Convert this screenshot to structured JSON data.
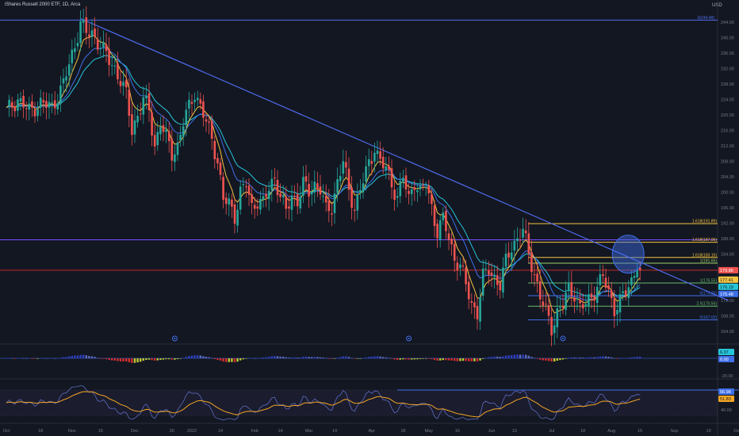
{
  "header": {
    "title": "iShares Russell 2000 ETF, 1D, Arca",
    "currency": "USD"
  },
  "colors": {
    "bg": "#131722",
    "up": "#26a69a",
    "down": "#ef5350",
    "ema_fast": "#f5c542",
    "ema_mid": "#3f6fe8",
    "ema_slow": "#26c6da",
    "trendline": "#4f6bed",
    "purple": "#7b4dff"
  },
  "chart_data": {
    "type": "candlestick",
    "title": "iShares Russell 2000 ETF, 1D, Arca",
    "ylabel": "USD",
    "ylim": [
      162,
      246
    ],
    "price_ticks": [
      164,
      168,
      172,
      176,
      180,
      184,
      188,
      192,
      196,
      200,
      204,
      208,
      212,
      216,
      220,
      224,
      228,
      232,
      236,
      240,
      244
    ],
    "time_ticks": [
      {
        "label": "Oct",
        "t": 0
      },
      {
        "label": "18",
        "t": 12
      },
      {
        "label": "Nov",
        "t": 23
      },
      {
        "label": "15",
        "t": 33
      },
      {
        "label": "Dec",
        "t": 45
      },
      {
        "label": "20",
        "t": 58
      },
      {
        "label": "2022",
        "t": 65
      },
      {
        "label": "14",
        "t": 75
      },
      {
        "label": "Feb",
        "t": 87
      },
      {
        "label": "14",
        "t": 96
      },
      {
        "label": "Mar",
        "t": 106
      },
      {
        "label": "14",
        "t": 115
      },
      {
        "label": "Apr",
        "t": 128
      },
      {
        "label": "18",
        "t": 139
      },
      {
        "label": "May",
        "t": 148
      },
      {
        "label": "16",
        "t": 158
      },
      {
        "label": "Jun",
        "t": 170
      },
      {
        "label": "13",
        "t": 178
      },
      {
        "label": "Jul",
        "t": 191
      },
      {
        "label": "18",
        "t": 202
      },
      {
        "label": "Aug",
        "t": 212
      },
      {
        "label": "15",
        "t": 222
      },
      {
        "label": "Sep",
        "t": 234
      },
      {
        "label": "19",
        "t": 246
      },
      {
        "label": "Oct",
        "t": 256
      }
    ],
    "anchors": [
      [
        0,
        221
      ],
      [
        4,
        224
      ],
      [
        8,
        221
      ],
      [
        12,
        223
      ],
      [
        16,
        222
      ],
      [
        20,
        228
      ],
      [
        24,
        238
      ],
      [
        26,
        244
      ],
      [
        28,
        241
      ],
      [
        30,
        241
      ],
      [
        33,
        238
      ],
      [
        36,
        234
      ],
      [
        38,
        232
      ],
      [
        40,
        229
      ],
      [
        42,
        225
      ],
      [
        44,
        216
      ],
      [
        46,
        220
      ],
      [
        48,
        224
      ],
      [
        50,
        221
      ],
      [
        52,
        212
      ],
      [
        54,
        218
      ],
      [
        58,
        210
      ],
      [
        60,
        212
      ],
      [
        62,
        218
      ],
      [
        64,
        222
      ],
      [
        66,
        226
      ],
      [
        68,
        222
      ],
      [
        70,
        218
      ],
      [
        72,
        214
      ],
      [
        74,
        208
      ],
      [
        76,
        198
      ],
      [
        78,
        197
      ],
      [
        80,
        194
      ],
      [
        82,
        200
      ],
      [
        84,
        202
      ],
      [
        86,
        196
      ],
      [
        88,
        198
      ],
      [
        90,
        197
      ],
      [
        92,
        201
      ],
      [
        94,
        204
      ],
      [
        96,
        199
      ],
      [
        98,
        195
      ],
      [
        100,
        199
      ],
      [
        102,
        198
      ],
      [
        104,
        202
      ],
      [
        106,
        200
      ],
      [
        108,
        202
      ],
      [
        110,
        201
      ],
      [
        112,
        195
      ],
      [
        114,
        196
      ],
      [
        116,
        203
      ],
      [
        118,
        208
      ],
      [
        120,
        200
      ],
      [
        122,
        196
      ],
      [
        124,
        201
      ],
      [
        126,
        205
      ],
      [
        128,
        209
      ],
      [
        129,
        212
      ],
      [
        131,
        208
      ],
      [
        133,
        206
      ],
      [
        135,
        202
      ],
      [
        137,
        199
      ],
      [
        139,
        204
      ],
      [
        141,
        198
      ],
      [
        143,
        203
      ],
      [
        145,
        200
      ],
      [
        147,
        202
      ],
      [
        149,
        196
      ],
      [
        151,
        190
      ],
      [
        153,
        193
      ],
      [
        155,
        188
      ],
      [
        157,
        183
      ],
      [
        159,
        181
      ],
      [
        161,
        176
      ],
      [
        163,
        171
      ],
      [
        165,
        169
      ],
      [
        167,
        178
      ],
      [
        169,
        180
      ],
      [
        171,
        178
      ],
      [
        173,
        176
      ],
      [
        175,
        182
      ],
      [
        177,
        186
      ],
      [
        179,
        188
      ],
      [
        181,
        190
      ],
      [
        183,
        184
      ],
      [
        185,
        179
      ],
      [
        187,
        173
      ],
      [
        189,
        169
      ],
      [
        191,
        165
      ],
      [
        193,
        169
      ],
      [
        195,
        171
      ],
      [
        197,
        175
      ],
      [
        199,
        174
      ],
      [
        201,
        170
      ],
      [
        203,
        171
      ],
      [
        205,
        173
      ],
      [
        207,
        176
      ],
      [
        209,
        178
      ],
      [
        211,
        174
      ],
      [
        213,
        170
      ],
      [
        215,
        172
      ],
      [
        217,
        174
      ],
      [
        219,
        177
      ],
      [
        221,
        182
      ],
      [
        222,
        179.8
      ]
    ],
    "last_index": 222,
    "trendline": {
      "from": [
        26,
        244.9
      ],
      "to": [
        253,
        172
      ]
    },
    "levels": [
      {
        "price": 244.48,
        "color": "#4f6bed",
        "label": "0(244.48)",
        "label_x": "right",
        "dashed": false
      },
      {
        "price": 191.89,
        "color": "#f5c542",
        "label": "1.618(191.89)",
        "label_x": "mid",
        "dashed": false
      },
      {
        "price": 187.71,
        "color": "#7b4dff",
        "label": "",
        "label_x": "none",
        "dashed": false
      },
      {
        "price": 187.06,
        "color": "#f5c542",
        "label": "1.618(187.06)",
        "label_x": "mid",
        "dashed": false
      },
      {
        "price": 183.15,
        "color": "#f5c542",
        "label": "1.618(183.15)",
        "label_x": "mid",
        "dashed": false
      },
      {
        "price": 181.66,
        "color": "#9ccc65",
        "label": "1(181.66)",
        "label_x": "mid",
        "dashed": false
      },
      {
        "price": 179.86,
        "color": "#c62828",
        "label": "",
        "label_x": "none",
        "dashed": false
      },
      {
        "price": 176.55,
        "color": "#66bb6a",
        "label": "1(176.55)",
        "label_x": "mid",
        "dashed": false
      },
      {
        "price": 173.26,
        "color": "#3f6fe8",
        "label": "0(173.26)",
        "label_x": "mid",
        "dashed": false
      },
      {
        "price": 170.56,
        "color": "#66bb6a",
        "label": "2.5(170.56)",
        "label_x": "mid",
        "dashed": false
      },
      {
        "price": 167.02,
        "color": "#3f6fe8",
        "label": "0(167.02)",
        "label_x": "mid",
        "dashed": false
      }
    ],
    "price_badges": [
      {
        "price": 179.86,
        "text": "179.86",
        "bg": "#ef5350",
        "fg": "#ffffff"
      },
      {
        "price": 177.41,
        "text": "177.41",
        "bg": "#f5c542",
        "fg": "#131722"
      },
      {
        "price": 176.19,
        "text": "176.19",
        "bg": "#26c6da",
        "fg": "#131722"
      },
      {
        "price": 175.48,
        "text": "175.48",
        "bg": "#3f6fe8",
        "fg": "#ffffff"
      }
    ],
    "circle_marker": {
      "t": 217,
      "price": 184
    },
    "macd": {
      "badges": [
        {
          "value": "6.37",
          "bg": "#26c6da",
          "fg": "#131722"
        },
        {
          "value": "0.00",
          "bg": "#3f6fe8",
          "fg": "#ffffff"
        }
      ],
      "ticks": [
        "-20.00"
      ],
      "markers": [
        59,
        141,
        195
      ]
    },
    "rsi": {
      "ticks": [
        "60.00",
        "40.00"
      ],
      "badges": [
        {
          "value": "56.98",
          "bg": "#3f6fe8",
          "fg": "#ffffff"
        },
        {
          "value": "51.83",
          "bg": "#f5a623",
          "fg": "#131722"
        }
      ],
      "level_line": {
        "from": 137,
        "to": 258,
        "value": 70
      }
    }
  }
}
